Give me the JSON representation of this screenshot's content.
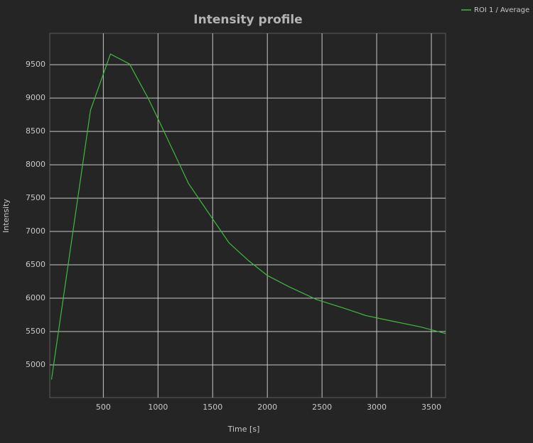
{
  "chart_data": {
    "type": "line",
    "title": "Intensity profile",
    "x_label": "Time [s]",
    "y_label": "Intensity",
    "x": [
      26,
      383,
      565,
      740,
      909,
      1000,
      1279,
      1649,
      1830,
      2000,
      2200,
      2450,
      2700,
      2900,
      3100,
      3400,
      3630
    ],
    "series": [
      {
        "name": "ROI 1 / Average",
        "color": "#3dbb3d",
        "values": [
          4780,
          8820,
          9660,
          9510,
          9000,
          8690,
          7720,
          6830,
          6560,
          6340,
          6170,
          5980,
          5850,
          5740,
          5670,
          5570,
          5470
        ]
      }
    ],
    "xlim": [
      10,
      3630
    ],
    "ylim": [
      4510,
      9970
    ],
    "xticks": [
      500,
      1000,
      1500,
      2000,
      2500,
      3000,
      3500
    ],
    "yticks": [
      5000,
      5500,
      6000,
      6500,
      7000,
      7500,
      8000,
      8500,
      9000,
      9500
    ],
    "grid": true,
    "legend": "top-right"
  }
}
